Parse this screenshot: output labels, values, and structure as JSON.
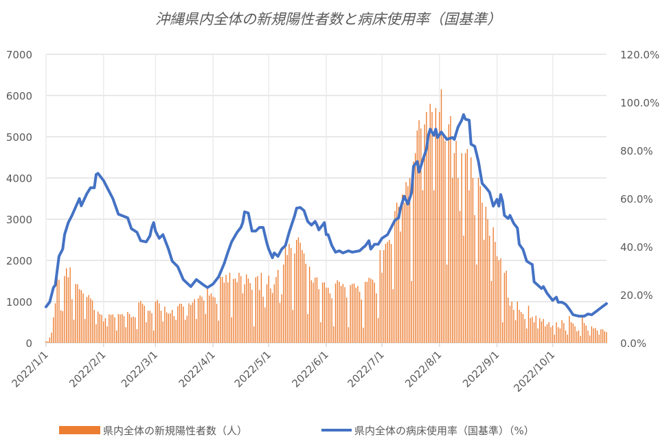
{
  "chart_data": {
    "type": "bar+line",
    "title": "沖縄県内全体の新規陽性者数と病床使用率（国基準）",
    "xlabel": "",
    "ylabel": "",
    "y_left": {
      "range": [
        0,
        7000
      ],
      "ticks": [
        "0",
        "1000",
        "2000",
        "3000",
        "4000",
        "5000",
        "6000",
        "7000"
      ]
    },
    "y_right": {
      "range": [
        0,
        120
      ],
      "unit": "%",
      "ticks": [
        "0.0%",
        "20.0%",
        "40.0%",
        "60.0%",
        "80.0%",
        "100.0%",
        "120.0%"
      ]
    },
    "x_ticks": [
      "2022/1/1",
      "2022/2/1",
      "2022/3/1",
      "2022/4/1",
      "2022/5/1",
      "2022/6/1",
      "2022/7/1",
      "2022/8/1",
      "2022/9/1",
      "2022/10/1"
    ],
    "x_range": [
      "2022/1/1",
      "2022/10/30"
    ],
    "grid": true,
    "legend_position": "bottom",
    "colors": {
      "bars": "#ED7D31",
      "line": "#4472C4",
      "grid": "#D9D9D9"
    },
    "series": [
      {
        "name": "県内全体の新規陽性者数（人）",
        "type": "bar",
        "axis": "left",
        "daily_values_by_month": {
          "2022/1": [
            40,
            40,
            130,
            250,
            620,
            960,
            1760,
            1530,
            790,
            770,
            1620,
            1810,
            1590,
            1830,
            1060,
            560,
            1430,
            1420,
            1300,
            1280,
            1200,
            580,
            1110,
            1160,
            1080,
            1030,
            800,
            450,
            760,
            700,
            680
          ],
          "2022/2": [
            520,
            600,
            400,
            690,
            680,
            690,
            620,
            300,
            700,
            690,
            700,
            650,
            380,
            750,
            700,
            620,
            640,
            620,
            330,
            980,
            1020,
            950,
            900,
            500,
            780,
            780,
            720,
            300
          ],
          "2022/3": [
            1000,
            1040,
            960,
            780,
            520,
            880,
            740,
            710,
            720,
            800,
            650,
            560,
            890,
            950,
            950,
            880,
            560,
            660,
            960,
            920,
            980,
            1060,
            580,
            1080,
            1150,
            1120,
            1030,
            700,
            1330,
            1150,
            1200
          ],
          "2022/4": [
            1120,
            1100,
            950,
            540,
            1600,
            1600,
            1460,
            1650,
            1470,
            1700,
            620,
            1550,
            1560,
            1470,
            1700,
            1620,
            1200,
            1420,
            1660,
            1560,
            1450,
            1290,
            400,
            1590,
            1620,
            1280,
            1700,
            1120,
            860,
            1420
          ],
          "2022/5": [
            1630,
            1320,
            1210,
            1420,
            1600,
            1770,
            970,
            1180,
            1900,
            2340,
            2130,
            2400,
            2300,
            800,
            2170,
            2500,
            2560,
            2430,
            2250,
            2170,
            1920,
            700,
            1850,
            1520,
            1460,
            1580,
            1590,
            1300,
            500,
            1460,
            1470
          ],
          "2022/6": [
            1340,
            1340,
            1200,
            1080,
            400,
            1440,
            1520,
            1480,
            1380,
            1430,
            1350,
            1100,
            380,
            1400,
            1430,
            1440,
            1340,
            1380,
            1240,
            1050,
            370,
            1480,
            1480,
            1580,
            1560,
            1530,
            1460,
            1200,
            600,
            2250
          ],
          "2022/7": [
            1700,
            2250,
            2400,
            2450,
            2500,
            2400,
            1300,
            3200,
            3400,
            3300,
            2700,
            3600,
            3400,
            3900,
            3800,
            4000,
            1500,
            4400,
            4600,
            5150,
            5400,
            5200,
            3700,
            5300,
            5600,
            5000,
            5800,
            5600,
            3700,
            5700,
            5000
          ],
          "2022/8": [
            5600,
            6150,
            5000,
            4900,
            1900,
            5300,
            5500,
            4000,
            4600,
            4900,
            4000,
            3200,
            4600,
            2600,
            4600,
            4700,
            3700,
            4500,
            4000,
            3100,
            1900,
            4000,
            3800,
            3400,
            2500,
            3300,
            3000,
            2600,
            1500,
            2800,
            2450
          ],
          "2022/9": [
            2100,
            2000,
            2050,
            500,
            1700,
            1750,
            1100,
            900,
            1000,
            800,
            550,
            1000,
            800,
            750,
            700,
            580,
            350,
            900,
            600,
            630,
            500,
            660,
            350,
            600,
            520,
            580,
            400,
            450,
            500,
            380
          ],
          "2022/10": [
            420,
            200,
            500,
            380,
            350,
            550,
            480,
            300,
            200,
            650,
            500,
            470,
            400,
            280,
            300,
            170,
            620,
            480,
            420,
            300,
            180,
            400,
            350,
            360,
            300,
            200,
            330,
            330,
            280,
            260
          ]
        }
      },
      {
        "name": "県内全体の病床使用率（国基準）（%）",
        "type": "line",
        "axis": "right",
        "points": [
          [
            "2022/1/1",
            15.0
          ],
          [
            "2022/1/3",
            17
          ],
          [
            "2022/1/5",
            23
          ],
          [
            "2022/1/6",
            24
          ],
          [
            "2022/1/8",
            36
          ],
          [
            "2022/1/10",
            39
          ],
          [
            "2022/1/11",
            45
          ],
          [
            "2022/1/13",
            50
          ],
          [
            "2022/1/15",
            53
          ],
          [
            "2022/1/19",
            60
          ],
          [
            "2022/1/20",
            57
          ],
          [
            "2022/1/23",
            62
          ],
          [
            "2022/1/25",
            64.5
          ],
          [
            "2022/1/27",
            64.5
          ],
          [
            "2022/1/28",
            70
          ],
          [
            "2022/1/29",
            70.5
          ],
          [
            "2022/2/1",
            67.5
          ],
          [
            "2022/2/3",
            64.5
          ],
          [
            "2022/2/6",
            60
          ],
          [
            "2022/2/9",
            53.5
          ],
          [
            "2022/2/14",
            52
          ],
          [
            "2022/2/16",
            47.5
          ],
          [
            "2022/2/19",
            46
          ],
          [
            "2022/2/21",
            42.5
          ],
          [
            "2022/2/24",
            42
          ],
          [
            "2022/2/26",
            44.5
          ],
          [
            "2022/2/27",
            48
          ],
          [
            "2022/2/28",
            50
          ],
          [
            "2022/3/1",
            46.5
          ],
          [
            "2022/3/3",
            43.5
          ],
          [
            "2022/3/5",
            45
          ],
          [
            "2022/3/8",
            39
          ],
          [
            "2022/3/10",
            34
          ],
          [
            "2022/3/13",
            31.7
          ],
          [
            "2022/3/16",
            26.3
          ],
          [
            "2022/3/20",
            23.4
          ],
          [
            "2022/3/23",
            26.3
          ],
          [
            "2022/3/27",
            24
          ],
          [
            "2022/3/29",
            23
          ],
          [
            "2022/4/1",
            24.5
          ],
          [
            "2022/4/4",
            27.5
          ],
          [
            "2022/4/7",
            33
          ],
          [
            "2022/4/9",
            37.7
          ],
          [
            "2022/4/11",
            42
          ],
          [
            "2022/4/14",
            46
          ],
          [
            "2022/4/16",
            48
          ],
          [
            "2022/4/17",
            50
          ],
          [
            "2022/4/18",
            54.5
          ],
          [
            "2022/4/20",
            54
          ],
          [
            "2022/4/22",
            46.5
          ],
          [
            "2022/4/24",
            46.5
          ],
          [
            "2022/4/26",
            48
          ],
          [
            "2022/4/28",
            48
          ],
          [
            "2022/4/30",
            41.5
          ],
          [
            "2022/5/1",
            39
          ],
          [
            "2022/5/3",
            35.4
          ],
          [
            "2022/5/4",
            37.4
          ],
          [
            "2022/5/6",
            36
          ],
          [
            "2022/5/8",
            39
          ],
          [
            "2022/5/10",
            40.5
          ],
          [
            "2022/5/12",
            46
          ],
          [
            "2022/5/15",
            53
          ],
          [
            "2022/5/16",
            56
          ],
          [
            "2022/5/18",
            56.3
          ],
          [
            "2022/5/20",
            55
          ],
          [
            "2022/5/22",
            50.5
          ],
          [
            "2022/5/24",
            49
          ],
          [
            "2022/5/26",
            50.5
          ],
          [
            "2022/5/27",
            49
          ],
          [
            "2022/5/28",
            47
          ],
          [
            "2022/5/31",
            50
          ],
          [
            "2022/6/1",
            45
          ],
          [
            "2022/6/2",
            45
          ],
          [
            "2022/6/4",
            40.5
          ],
          [
            "2022/6/6",
            37.7
          ],
          [
            "2022/6/8",
            38.3
          ],
          [
            "2022/6/10",
            37.4
          ],
          [
            "2022/6/13",
            38.3
          ],
          [
            "2022/6/15",
            37.7
          ],
          [
            "2022/6/19",
            38.3
          ],
          [
            "2022/6/21",
            39.7
          ],
          [
            "2022/6/22",
            40.3
          ],
          [
            "2022/6/24",
            42.5
          ],
          [
            "2022/6/25",
            39
          ],
          [
            "2022/6/27",
            41
          ],
          [
            "2022/6/29",
            41
          ],
          [
            "2022/7/1",
            43.5
          ],
          [
            "2022/7/4",
            45
          ],
          [
            "2022/7/6",
            48
          ],
          [
            "2022/7/8",
            51
          ],
          [
            "2022/7/10",
            52
          ],
          [
            "2022/7/11",
            56
          ],
          [
            "2022/7/13",
            61
          ],
          [
            "2022/7/15",
            57.7
          ],
          [
            "2022/7/17",
            62.6
          ],
          [
            "2022/7/18",
            73.4
          ],
          [
            "2022/7/20",
            75.4
          ],
          [
            "2022/7/21",
            71
          ],
          [
            "2022/7/23",
            76
          ],
          [
            "2022/7/25",
            80.6
          ],
          [
            "2022/7/26",
            86.3
          ],
          [
            "2022/7/27",
            88.9
          ],
          [
            "2022/7/29",
            86.3
          ],
          [
            "2022/7/30",
            88.9
          ],
          [
            "2022/7/31",
            85.4
          ],
          [
            "2022/8/2",
            87.7
          ],
          [
            "2022/8/5",
            84.6
          ],
          [
            "2022/8/8",
            85.4
          ],
          [
            "2022/8/9",
            84.6
          ],
          [
            "2022/8/11",
            89.7
          ],
          [
            "2022/8/13",
            92.6
          ],
          [
            "2022/8/14",
            94.9
          ],
          [
            "2022/8/15",
            93
          ],
          [
            "2022/8/17",
            92.6
          ],
          [
            "2022/8/18",
            82.6
          ],
          [
            "2022/8/20",
            81.7
          ],
          [
            "2022/8/22",
            75.4
          ],
          [
            "2022/8/24",
            66.3
          ],
          [
            "2022/8/26",
            64.6
          ],
          [
            "2022/8/28",
            62.6
          ],
          [
            "2022/8/30",
            56.9
          ],
          [
            "2022/9/1",
            59.7
          ],
          [
            "2022/9/2",
            56.9
          ],
          [
            "2022/9/3",
            61.7
          ],
          [
            "2022/9/4",
            58.9
          ],
          [
            "2022/9/5",
            53
          ],
          [
            "2022/9/7",
            51.7
          ],
          [
            "2022/9/8",
            53
          ],
          [
            "2022/9/10",
            49.7
          ],
          [
            "2022/9/12",
            47.7
          ],
          [
            "2022/9/13",
            41
          ],
          [
            "2022/9/15",
            38.9
          ],
          [
            "2022/9/17",
            34
          ],
          [
            "2022/9/19",
            33
          ],
          [
            "2022/9/20",
            32.6
          ],
          [
            "2022/9/21",
            25.4
          ],
          [
            "2022/9/23",
            24
          ],
          [
            "2022/9/25",
            22.6
          ],
          [
            "2022/9/26",
            23.4
          ],
          [
            "2022/9/28",
            20.6
          ],
          [
            "2022/10/1",
            17.7
          ],
          [
            "2022/10/3",
            19
          ],
          [
            "2022/10/4",
            16.9
          ],
          [
            "2022/10/6",
            16.9
          ],
          [
            "2022/10/8",
            16
          ],
          [
            "2022/10/10",
            14
          ],
          [
            "2022/10/12",
            11.7
          ],
          [
            "2022/10/15",
            11.1
          ],
          [
            "2022/10/18",
            11.1
          ],
          [
            "2022/10/20",
            12
          ],
          [
            "2022/10/22",
            11.7
          ],
          [
            "2022/10/25",
            13.4
          ],
          [
            "2022/10/27",
            14.6
          ],
          [
            "2022/10/30",
            16.3
          ]
        ]
      }
    ]
  }
}
